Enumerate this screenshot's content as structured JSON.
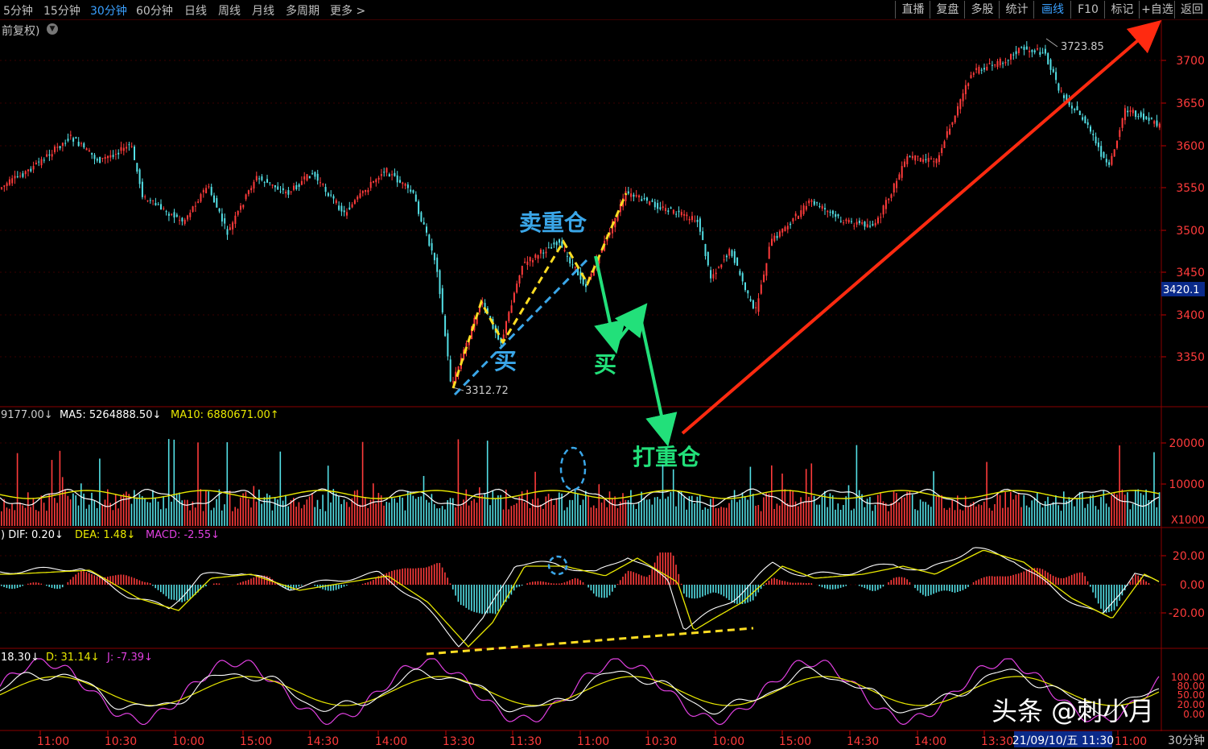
{
  "toolbar": {
    "timeframes": [
      "5分钟",
      "15分钟",
      "30分钟",
      "60分钟",
      "日线",
      "周线",
      "月线",
      "多周期",
      "更多 >"
    ],
    "active_timeframe": "30分钟",
    "right_buttons": [
      "直播",
      "复盘",
      "多股",
      "统计",
      "画线",
      "F10",
      "标记",
      "+自选",
      "返回"
    ],
    "active_right": "画线"
  },
  "adjust_mode": "前复权)",
  "price_panel": {
    "high_label": "3723.85",
    "low_label": "3312.72",
    "current_price": "3420.1",
    "y_ticks": [
      "3700",
      "3650",
      "3600",
      "3550",
      "3500",
      "3450",
      "3400",
      "3350"
    ]
  },
  "annotations": {
    "sell_heavy": "卖重仓",
    "buy_1": "买",
    "buy_2": "买",
    "buy_heavy": "打重仓"
  },
  "volume_panel": {
    "legend": [
      "9177.00↓",
      "MA5: 5264888.50↓",
      "MA10: 6880671.00↑"
    ],
    "y_ticks": [
      "20000",
      "10000"
    ],
    "unit": "X1000"
  },
  "macd_panel": {
    "legend": [
      ")  DIF: 0.20↓",
      "DEA: 1.48↓",
      "MACD: -2.55↓"
    ],
    "y_ticks": [
      "20.00",
      "0.00",
      "-20.00"
    ]
  },
  "kdj_panel": {
    "legend": [
      "18.30↓",
      "D: 31.14↓",
      "J: -7.39↓"
    ],
    "y_ticks": [
      "100.00",
      "80.00",
      "50.00",
      "20.00",
      "0.00"
    ]
  },
  "x_axis": {
    "labels": [
      "11:00",
      "10:30",
      "10:00",
      "15:00",
      "14:30",
      "14:00",
      "13:30",
      "11:30",
      "11:00",
      "10:30",
      "10:00",
      "15:00",
      "14:30",
      "14:00",
      "13:30",
      "11:00"
    ],
    "date_badge": "21/09/10/五 11:30",
    "period": "30分钟"
  },
  "watermark": "头条 @刺小月",
  "colors": {
    "up": "#ff3b3b",
    "down": "#54e0e6",
    "active": "#3aa0ff",
    "white_line": "#ffffff",
    "yellow_line": "#e8e800",
    "magenta_line": "#e040e0",
    "annot_blue": "#3aa6e8",
    "annot_green": "#22e07a",
    "arrow_red": "#ff2a10",
    "dash_yellow": "#ffdd22"
  }
}
